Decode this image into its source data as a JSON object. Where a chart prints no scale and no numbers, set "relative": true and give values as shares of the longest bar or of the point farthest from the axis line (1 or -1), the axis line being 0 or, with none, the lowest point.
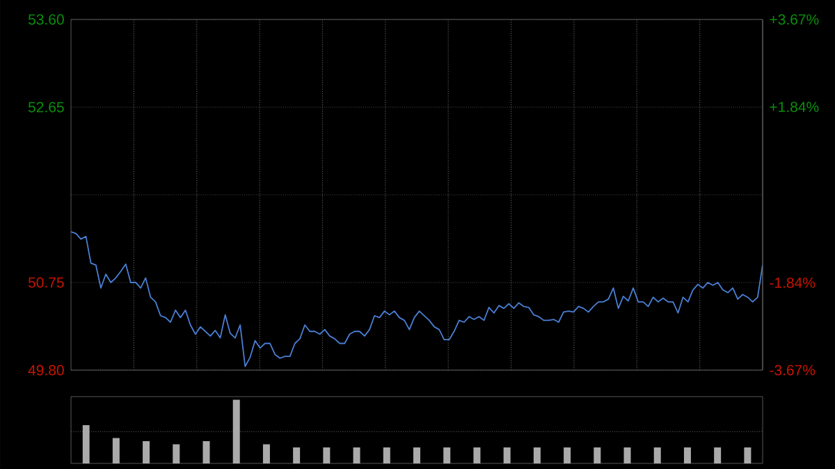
{
  "chart_data": [
    {
      "type": "line",
      "ylim": [
        49.8,
        53.6
      ],
      "y2lim": [
        -3.67,
        3.67
      ],
      "grid": true,
      "tick_labels": "y",
      "categories": [
        null,
        null,
        null,
        null,
        null,
        null,
        null,
        null,
        null,
        null,
        null,
        null,
        null,
        null,
        null,
        null,
        null,
        null,
        null,
        null,
        null,
        null,
        null,
        null,
        null,
        null,
        null,
        null,
        null,
        null,
        null,
        null,
        null,
        null,
        null,
        null,
        null,
        null,
        null,
        null,
        null,
        null,
        null,
        null,
        null,
        null,
        null,
        null,
        null,
        null,
        null,
        null,
        null,
        null,
        null,
        null,
        null,
        null,
        null,
        null,
        null,
        null,
        null,
        null,
        null,
        null,
        null,
        null,
        null,
        null,
        null,
        null,
        null,
        null,
        null,
        null,
        null,
        null,
        null,
        null,
        null,
        null,
        null,
        null,
        null,
        null,
        null,
        null,
        null,
        null,
        null,
        null,
        null,
        null,
        null,
        null,
        null,
        null,
        null,
        null,
        null,
        null,
        null,
        null,
        null,
        null,
        null,
        null,
        null,
        null,
        null,
        null,
        null,
        null,
        null,
        null,
        null,
        null,
        null,
        null,
        null,
        null,
        null,
        null,
        null,
        null,
        null,
        null,
        null,
        null,
        null,
        null,
        null,
        null,
        null,
        null,
        null,
        null,
        null,
        null
      ],
      "yticks": [
        {
          "value": 49.8,
          "label": "49.80"
        },
        {
          "value": 50.75,
          "label": "50.75"
        },
        {
          "value": 51.7,
          "label": null
        },
        {
          "value": 52.65,
          "label": "52.65"
        },
        {
          "value": 53.6,
          "label": "53.60"
        }
      ],
      "y2ticks": [
        {
          "value": -3.67,
          "label": "-3.67%"
        },
        {
          "value": -1.84,
          "label": "-1.84%"
        },
        {
          "value": 1.84,
          "label": "+1.84%"
        },
        {
          "value": 3.67,
          "label": "+3.67%"
        }
      ],
      "series": [
        {
          "color": "#4a7fd4",
          "values": [
            51.3,
            51.28,
            51.22,
            51.25,
            50.96,
            50.94,
            50.69,
            50.84,
            50.75,
            50.8,
            50.87,
            50.95,
            50.75,
            50.75,
            50.69,
            50.8,
            50.59,
            50.54,
            50.39,
            50.37,
            50.32,
            50.45,
            50.37,
            50.45,
            50.29,
            50.19,
            50.27,
            50.22,
            50.17,
            50.23,
            50.15,
            50.4,
            50.2,
            50.15,
            50.29,
            49.84,
            49.94,
            50.12,
            50.04,
            50.09,
            50.09,
            49.97,
            49.93,
            49.95,
            49.95,
            50.09,
            50.14,
            50.29,
            50.22,
            50.22,
            50.19,
            50.24,
            50.17,
            50.14,
            50.09,
            50.09,
            50.19,
            50.22,
            50.22,
            50.17,
            50.24,
            50.39,
            50.37,
            50.44,
            50.4,
            50.44,
            50.37,
            50.34,
            50.24,
            50.37,
            50.44,
            50.39,
            50.34,
            50.27,
            50.24,
            50.13,
            50.13,
            50.22,
            50.34,
            50.32,
            50.38,
            50.35,
            50.38,
            50.34,
            50.48,
            50.42,
            50.5,
            50.47,
            50.52,
            50.47,
            50.53,
            50.49,
            50.48,
            50.4,
            50.38,
            50.34,
            50.34,
            50.35,
            50.32,
            50.43,
            50.44,
            50.43,
            50.49,
            50.47,
            50.43,
            50.49,
            50.54,
            50.54,
            50.57,
            50.69,
            50.47,
            50.6,
            50.55,
            50.69,
            50.54,
            50.54,
            50.49,
            50.59,
            50.54,
            50.58,
            50.54,
            50.54,
            50.42,
            50.59,
            50.54,
            50.67,
            50.73,
            50.69,
            50.75,
            50.72,
            50.75,
            50.67,
            50.64,
            50.69,
            50.57,
            50.62,
            50.59,
            50.54,
            50.59,
            50.94
          ]
        }
      ]
    },
    {
      "type": "bar",
      "relative": true,
      "tick_labels": false,
      "color": "#aaaaaa",
      "ref_lines": [
        {
          "axis": "y",
          "value": 0.5,
          "color": "#5a5a5a",
          "line_style": "dotted"
        }
      ],
      "categories": [
        null,
        null,
        null,
        null,
        null,
        null,
        null,
        null,
        null,
        null,
        null,
        null,
        null,
        null,
        null,
        null,
        null,
        null,
        null,
        null,
        null,
        null,
        null
      ],
      "values": [
        0.6,
        0.4,
        0.35,
        0.3,
        0.35,
        1,
        0.3,
        0.25,
        0.25,
        0.25,
        0.25,
        0.25,
        0.25,
        0.25,
        0.25,
        0.25,
        0.25,
        0.25,
        0.25,
        0.25,
        0.25,
        0.25,
        0.25
      ]
    }
  ]
}
